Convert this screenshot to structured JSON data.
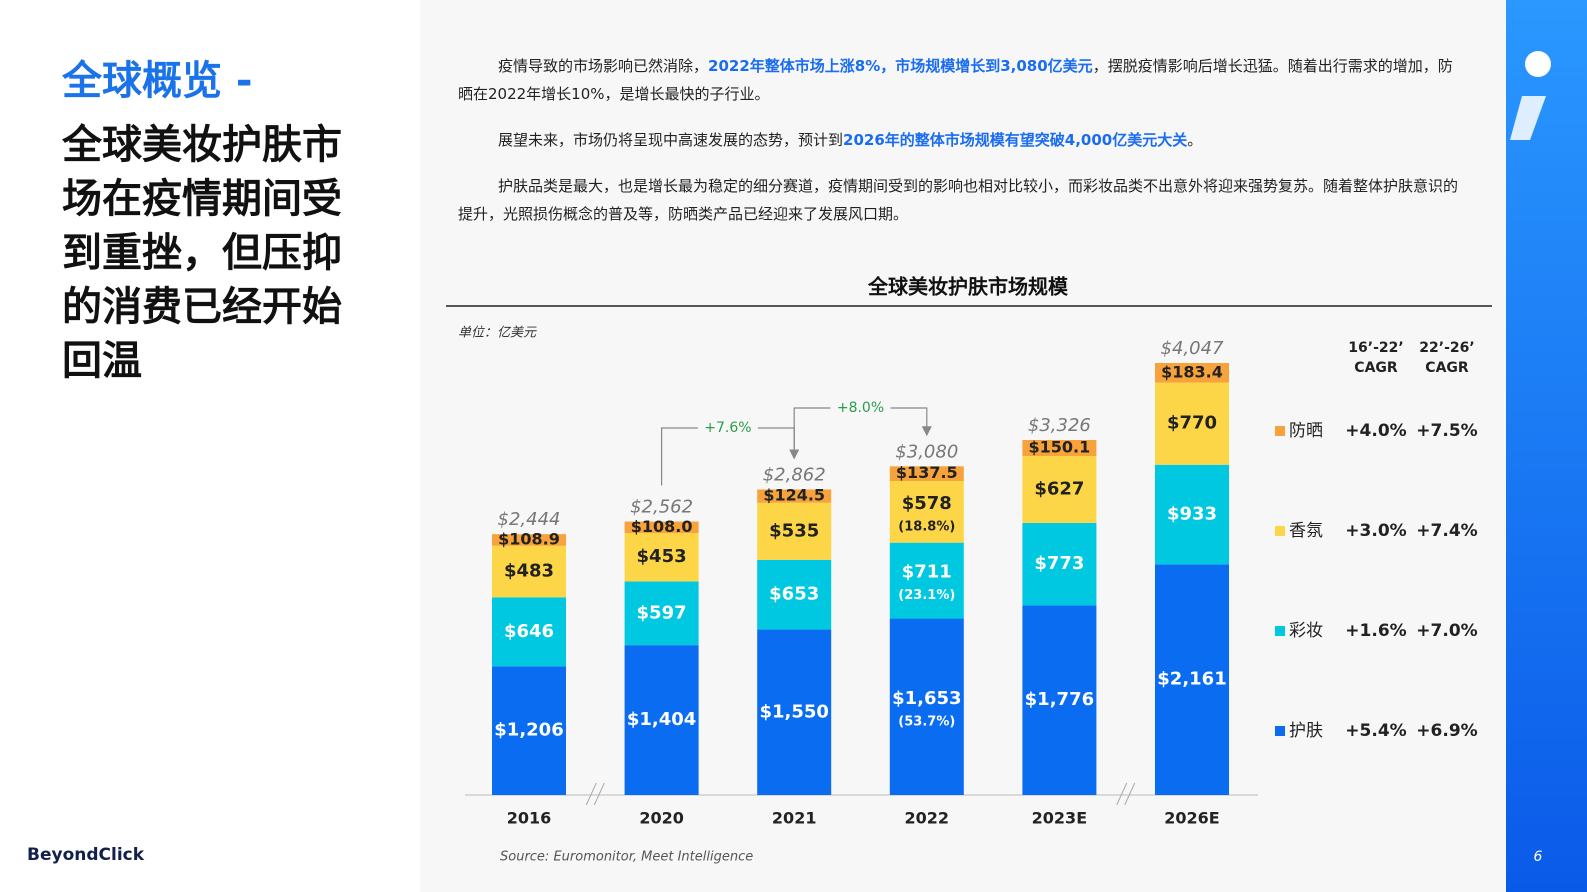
{
  "header": {
    "title": "全球概览 -",
    "subtitle": "全球美妆护肤市场在疫情期间受到重挫，但压抑的消费已经开始回温"
  },
  "paragraphs": [
    [
      "疫情导致的市场影响已然消除，",
      "2022年整体市场上涨8%，市场规模增长到3,080亿美元",
      "，摆脱疫情影响后增长迅猛。随着出行需求的增加，防晒在2022年增长10%，是增长最快的子行业。"
    ],
    [
      "展望未来，市场仍将呈现中高速发展的态势，预计到",
      "2026年的整体市场规模有望突破4,000亿美元大关",
      "。"
    ],
    [
      "护肤品类是最大，也是增长最为稳定的细分赛道，疫情期间受到的影响也相对比较小，而彩妆品类不出意外将迎来强势复苏。随着整体护肤意识的提升，光照损伤概念的普及等，防晒类产品已经迎来了发展风口期。"
    ]
  ],
  "chart_data": {
    "type": "stacked-bar",
    "title": "全球美妆护肤市场规模",
    "unit": "单位：亿美元",
    "categories": [
      "2016",
      "2020",
      "2021",
      "2022",
      "2023E",
      "2026E"
    ],
    "series": [
      {
        "name": "护肤",
        "color": "#0a6cf0",
        "values": [
          1206,
          1404,
          1550,
          1653,
          1776,
          2161
        ],
        "value_labels": [
          "$1,206",
          "$1,404",
          "$1,550",
          "$1,653",
          "$1,776",
          "$2,161"
        ],
        "share_labels": [
          null,
          null,
          null,
          "(53.7%)",
          null,
          null
        ],
        "cagr_labels": [
          "+5.4%",
          "+6.9%"
        ]
      },
      {
        "name": "彩妆",
        "color": "#00c8e0",
        "values": [
          646,
          597,
          653,
          711,
          773,
          933
        ],
        "value_labels": [
          "$646",
          "$597",
          "$653",
          "$711",
          "$773",
          "$933"
        ],
        "share_labels": [
          null,
          null,
          null,
          "(23.1%)",
          null,
          null
        ],
        "cagr_labels": [
          "+1.6%",
          "+7.0%"
        ]
      },
      {
        "name": "香氛",
        "color": "#fdd648",
        "values": [
          483,
          453,
          535,
          578,
          627,
          770
        ],
        "value_labels": [
          "$483",
          "$453",
          "$535",
          "$578",
          "$627",
          "$770"
        ],
        "share_labels": [
          null,
          null,
          null,
          "(18.8%)",
          null,
          null
        ],
        "cagr_labels": [
          "+3.0%",
          "+7.4%"
        ]
      },
      {
        "name": "防晒",
        "color": "#f7a23b",
        "values": [
          108.9,
          108.0,
          124.5,
          137.5,
          150.1,
          183.4
        ],
        "value_labels": [
          "$108.9",
          "$108.0",
          "$124.5",
          "$137.5",
          "$150.1",
          "$183.4"
        ],
        "cagr_labels": [
          "+4.0%",
          "+7.5%"
        ]
      }
    ],
    "totals": [
      2444,
      2562,
      2862,
      3080,
      3326,
      4047
    ],
    "total_labels": [
      "$2,444",
      "$2,562",
      "$2,862",
      "$3,080",
      "$3,326",
      "$4,047"
    ],
    "growth_labels": [
      "+7.6%",
      "+8.0%"
    ],
    "cagr_headers": [
      "16’-22’ CAGR",
      "22’-26’ CAGR"
    ],
    "source": "Source: Euromonitor, Meet Intelligence"
  },
  "footer": {
    "logo": "BeyondClick",
    "page": "6"
  }
}
